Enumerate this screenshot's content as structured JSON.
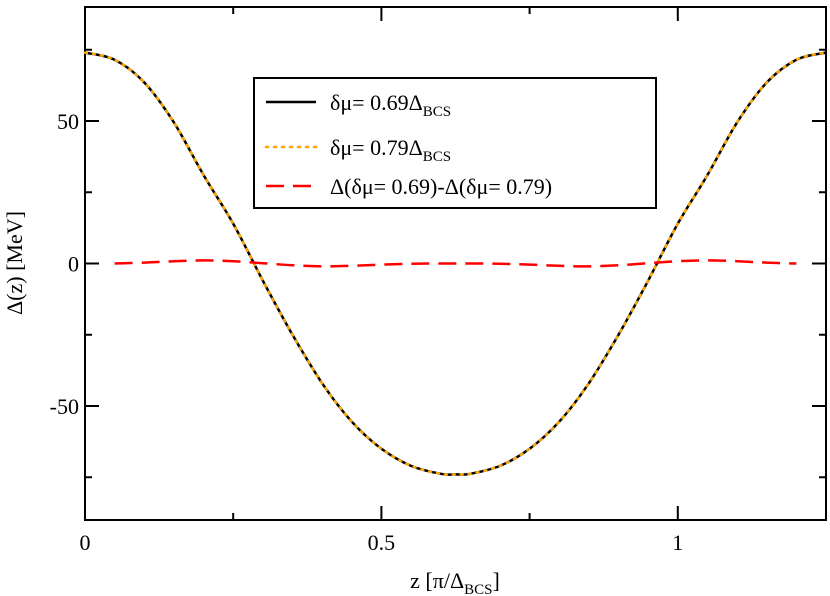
{
  "chart_data": {
    "type": "line",
    "xlabel": {
      "main": "z [π/Δ",
      "sub": "BCS",
      "tail": "]"
    },
    "ylabel": "Δ(z) [MeV]",
    "xlim": [
      0,
      1.25
    ],
    "ylim": [
      -90,
      90
    ],
    "x_ticks": [
      {
        "value": 0,
        "label": "0"
      },
      {
        "value": 0.5,
        "label": "0.5"
      },
      {
        "value": 1,
        "label": "1"
      }
    ],
    "y_ticks": [
      {
        "value": -50,
        "label": "-50"
      },
      {
        "value": 0,
        "label": "0"
      },
      {
        "value": 50,
        "label": "50"
      }
    ],
    "grid": false,
    "legend_position": "top-center",
    "series": [
      {
        "name": "δμ= 0.69Δ",
        "name_sub": "BCS",
        "color": "#000000",
        "style": "solid",
        "x": [
          0,
          0.05,
          0.1,
          0.15,
          0.2,
          0.25,
          0.3,
          0.35,
          0.4,
          0.45,
          0.5,
          0.55,
          0.6,
          0.625,
          0.65,
          0.7,
          0.75,
          0.8,
          0.85,
          0.9,
          0.95,
          1.0,
          1.05,
          1.1,
          1.15,
          1.2,
          1.25
        ],
        "y": [
          74,
          71.5,
          63.5,
          49.5,
          31,
          14,
          -6,
          -25,
          -42,
          -55.5,
          -65,
          -71,
          -73.8,
          -74,
          -73.8,
          -71,
          -65,
          -55.5,
          -42,
          -25,
          -6,
          14,
          31,
          49.5,
          63.5,
          71.5,
          74
        ]
      },
      {
        "name": "δμ= 0.79Δ",
        "name_sub": "BCS",
        "color": "#ffa500",
        "style": "dotted",
        "x": [
          0,
          0.05,
          0.1,
          0.15,
          0.2,
          0.25,
          0.3,
          0.35,
          0.4,
          0.45,
          0.5,
          0.55,
          0.6,
          0.625,
          0.65,
          0.7,
          0.75,
          0.8,
          0.85,
          0.9,
          0.95,
          1.0,
          1.05,
          1.1,
          1.15,
          1.2,
          1.25
        ],
        "y": [
          74,
          71.5,
          63.5,
          49.5,
          31,
          14,
          -6,
          -25,
          -42,
          -55.5,
          -65,
          -71,
          -73.8,
          -74,
          -73.8,
          -71,
          -65,
          -55.5,
          -42,
          -25,
          -6,
          14,
          31,
          49.5,
          63.5,
          71.5,
          74
        ]
      },
      {
        "name": "Δ(δμ= 0.69)-Δ(δμ= 0.79)",
        "name_sub": "",
        "color": "#ff0000",
        "style": "dashed",
        "x": [
          0.05,
          0.1,
          0.15,
          0.2,
          0.25,
          0.3,
          0.35,
          0.4,
          0.45,
          0.5,
          0.55,
          0.6,
          0.65,
          0.7,
          0.75,
          0.8,
          0.85,
          0.9,
          0.95,
          1.0,
          1.05,
          1.1,
          1.15,
          1.2
        ],
        "y": [
          0,
          0.3,
          0.8,
          1.1,
          0.8,
          0.1,
          -0.6,
          -1.0,
          -0.8,
          -0.4,
          -0.1,
          0,
          0,
          -0.1,
          -0.4,
          -0.8,
          -1.0,
          -0.6,
          0.1,
          0.8,
          1.1,
          0.8,
          0.3,
          0
        ]
      }
    ]
  }
}
